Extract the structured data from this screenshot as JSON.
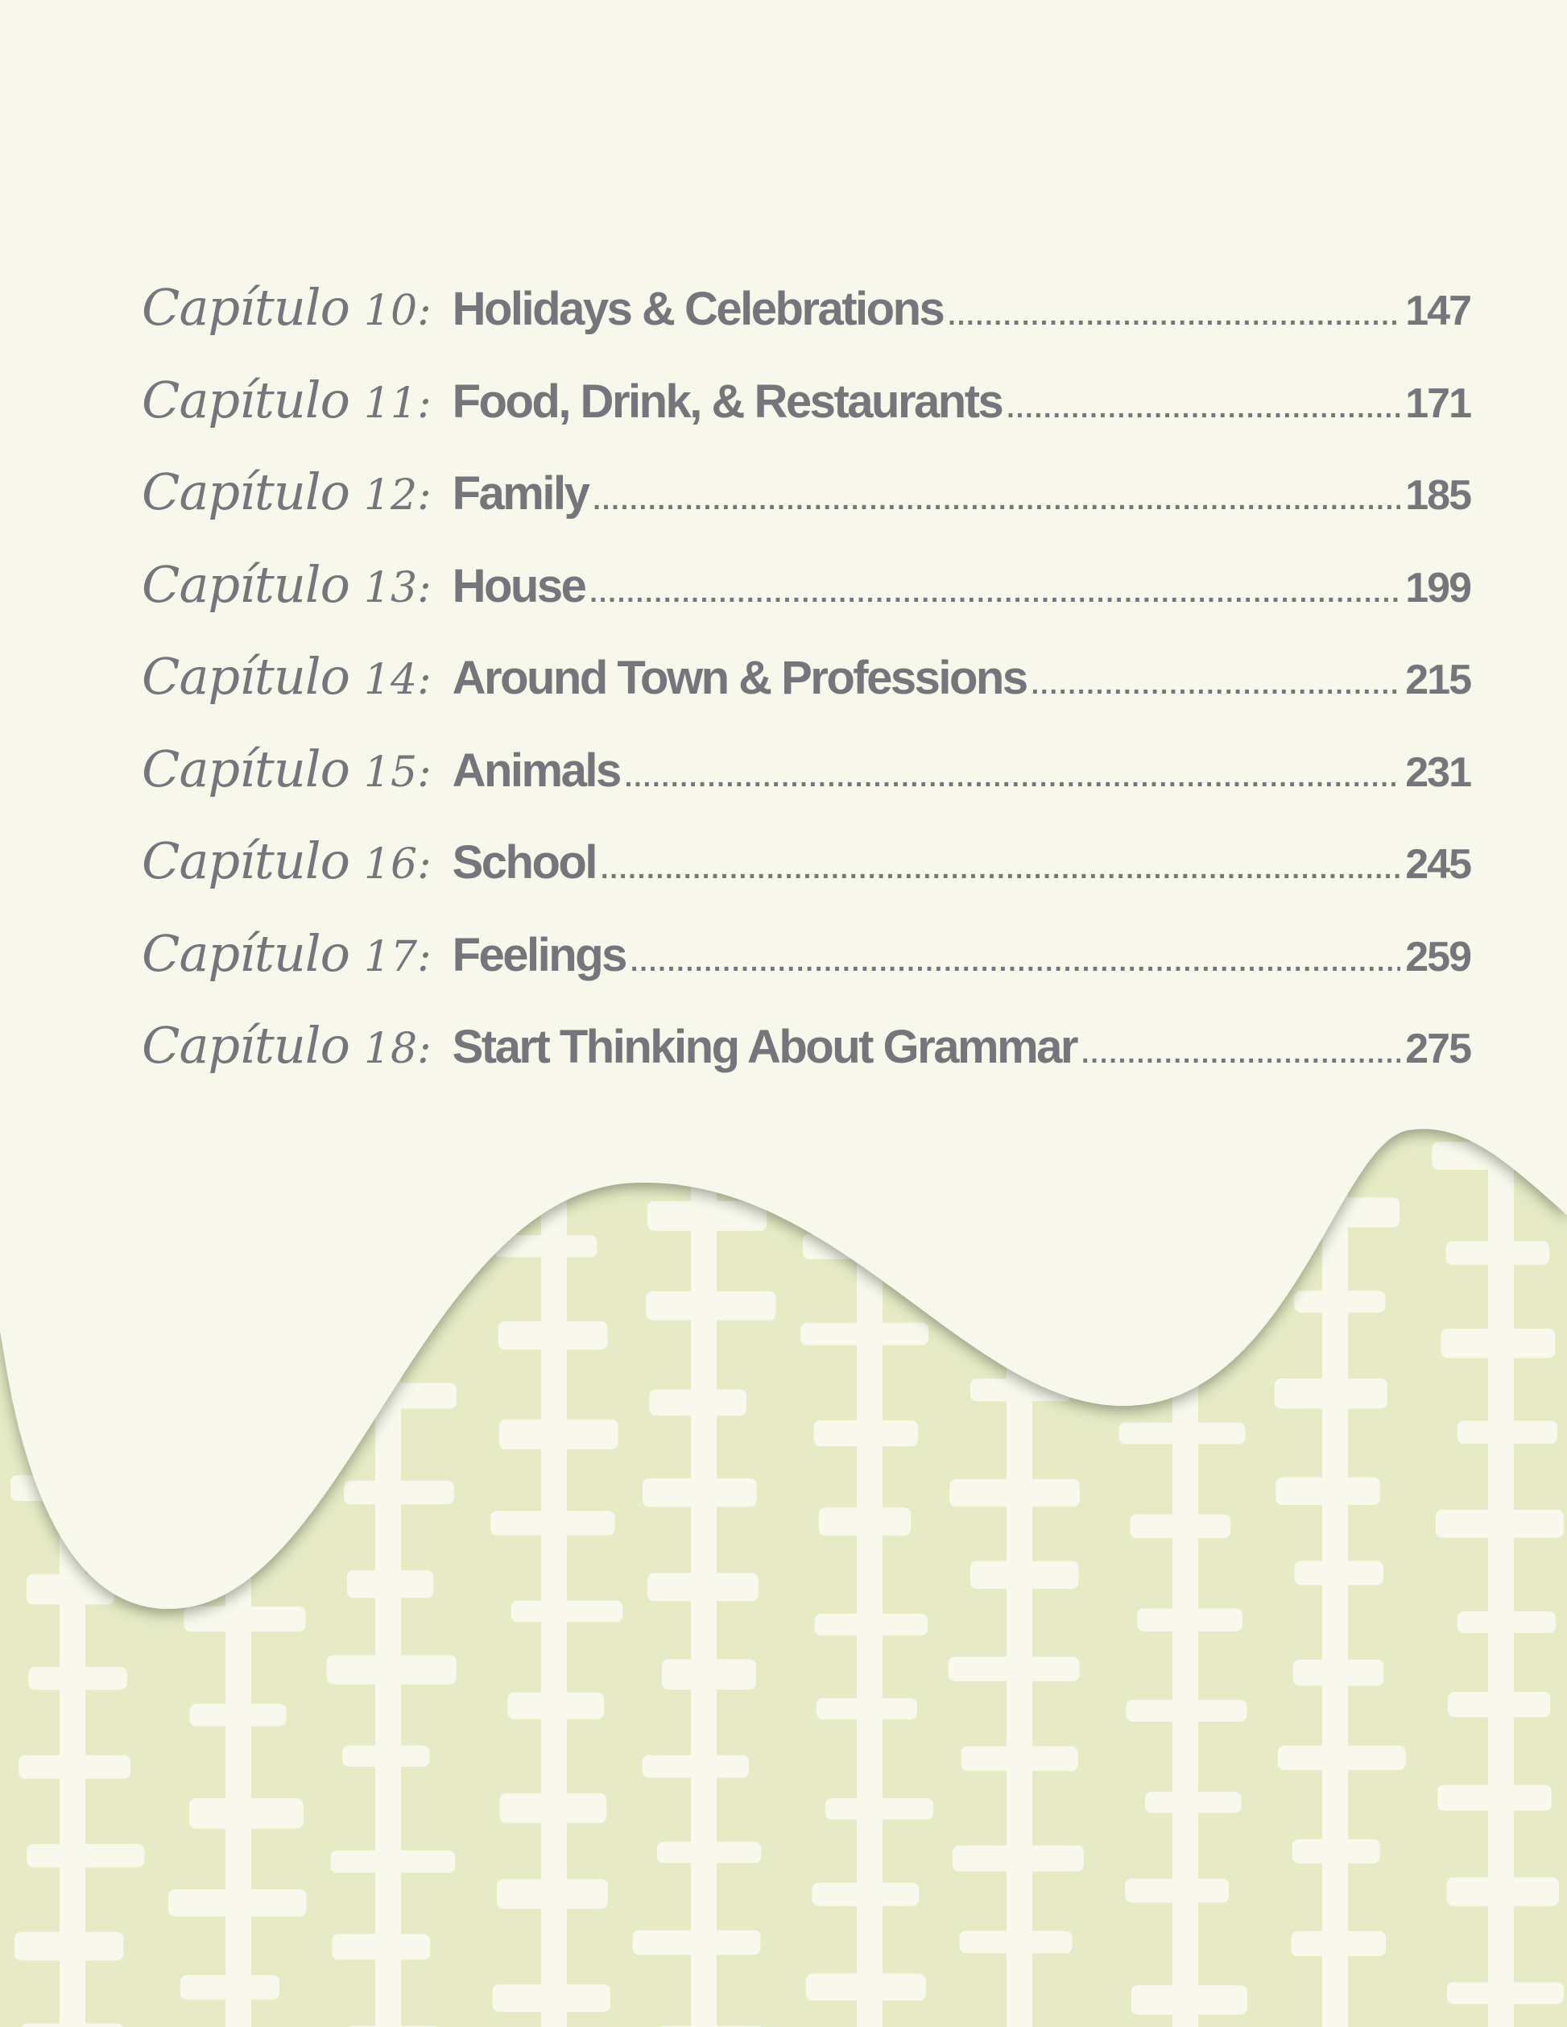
{
  "colors": {
    "paper": "#f7f8eb",
    "pattern_bg": "#e6ebc5",
    "pattern_marks": "#f8f9ec",
    "text": "#74767b"
  },
  "toc": {
    "entries": [
      {
        "label": "Capítulo",
        "number": "10:",
        "title": "Holidays & Celebrations",
        "page": "147"
      },
      {
        "label": "Capítulo",
        "number": "11:",
        "title": "Food, Drink, & Restaurants",
        "page": "171"
      },
      {
        "label": "Capítulo",
        "number": "12:",
        "title": "Family",
        "page": "185"
      },
      {
        "label": "Capítulo",
        "number": "13:",
        "title": "House",
        "page": "199"
      },
      {
        "label": "Capítulo",
        "number": "14:",
        "title": "Around Town & Professions",
        "page": "215"
      },
      {
        "label": "Capítulo",
        "number": "15:",
        "title": "Animals",
        "page": "231"
      },
      {
        "label": "Capítulo",
        "number": "16:",
        "title": "School",
        "page": "245"
      },
      {
        "label": "Capítulo",
        "number": "17:",
        "title": "Feelings",
        "page": "259"
      },
      {
        "label": "Capítulo",
        "number": "18:",
        "title": "Start Thinking About Grammar",
        "page": "275"
      }
    ]
  }
}
